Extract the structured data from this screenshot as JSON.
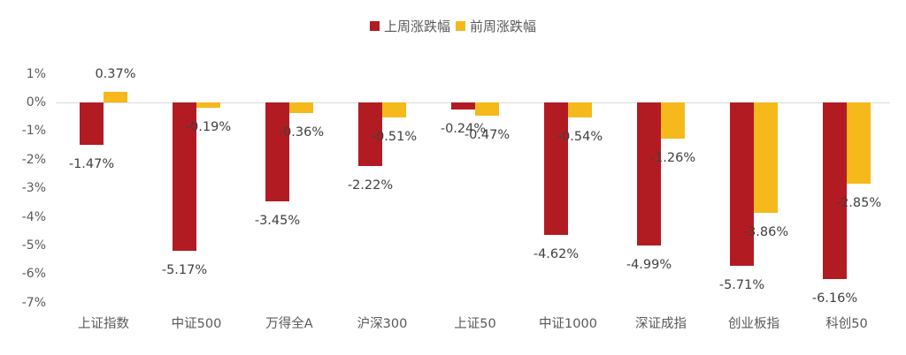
{
  "chart_data": {
    "type": "bar",
    "title": "",
    "xlabel": "",
    "ylabel": "",
    "ylim": [
      -7,
      1
    ],
    "yticks": [
      "1%",
      "0%",
      "-1%",
      "-2%",
      "-3%",
      "-4%",
      "-5%",
      "-6%",
      "-7%"
    ],
    "grid": false,
    "legend_position": "top",
    "categories": [
      "上证指数",
      "中证500",
      "万得全A",
      "沪深300",
      "上证50",
      "中证1000",
      "深证成指",
      "创业板指",
      "科创50"
    ],
    "series": [
      {
        "name": "上周涨跌幅",
        "color": "#B31B23",
        "values": [
          -1.47,
          -5.17,
          -3.45,
          -2.22,
          -0.24,
          -4.62,
          -4.99,
          -5.71,
          -6.16
        ],
        "labels": [
          "-1.47%",
          "-5.17%",
          "-3.45%",
          "-2.22%",
          "-0.24%",
          "-4.62%",
          "-4.99%",
          "-5.71%",
          "-6.16%"
        ]
      },
      {
        "name": "前周涨跌幅",
        "color": "#F5B91C",
        "values": [
          0.37,
          -0.19,
          -0.36,
          -0.51,
          -0.47,
          -0.54,
          -1.26,
          -3.86,
          -2.85
        ],
        "labels": [
          "0.37%",
          "-0.19%",
          "-0.36%",
          "-0.51%",
          "-0.47%",
          "-0.54%",
          "-1.26%",
          "-3.86%",
          "-2.85%"
        ]
      }
    ]
  },
  "legend": {
    "items": [
      {
        "label": "上周涨跌幅",
        "color": "#B31B23"
      },
      {
        "label": "前周涨跌幅",
        "color": "#F5B91C"
      }
    ]
  }
}
